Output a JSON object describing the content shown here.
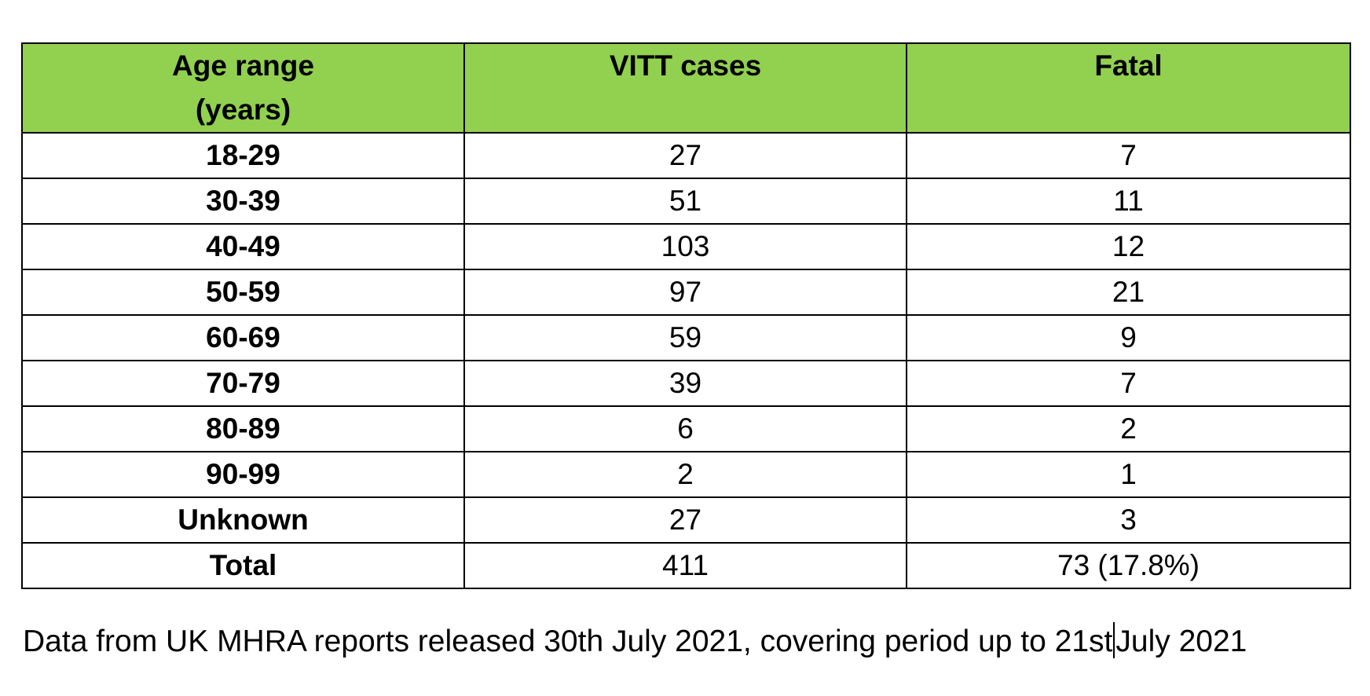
{
  "table": {
    "headers": [
      "Age range\n(years)",
      "VITT cases",
      "Fatal"
    ],
    "rows": [
      {
        "age": "18-29",
        "cases": "27",
        "fatal": "7"
      },
      {
        "age": "30-39",
        "cases": "51",
        "fatal": "11"
      },
      {
        "age": "40-49",
        "cases": "103",
        "fatal": "12"
      },
      {
        "age": "50-59",
        "cases": "97",
        "fatal": "21"
      },
      {
        "age": "60-69",
        "cases": "59",
        "fatal": "9"
      },
      {
        "age": "70-79",
        "cases": "39",
        "fatal": "7"
      },
      {
        "age": "80-89",
        "cases": "6",
        "fatal": "2"
      },
      {
        "age": "90-99",
        "cases": "2",
        "fatal": "1"
      },
      {
        "age": "Unknown",
        "cases": "27",
        "fatal": "3"
      },
      {
        "age": "Total",
        "cases": "411",
        "fatal": "73 (17.8%)"
      }
    ],
    "header_color": "#92D050"
  },
  "footnote": {
    "before_cursor": "Data from UK MHRA reports released 30th July 2021, covering period up to 21st",
    "after_cursor": "July 2021"
  }
}
